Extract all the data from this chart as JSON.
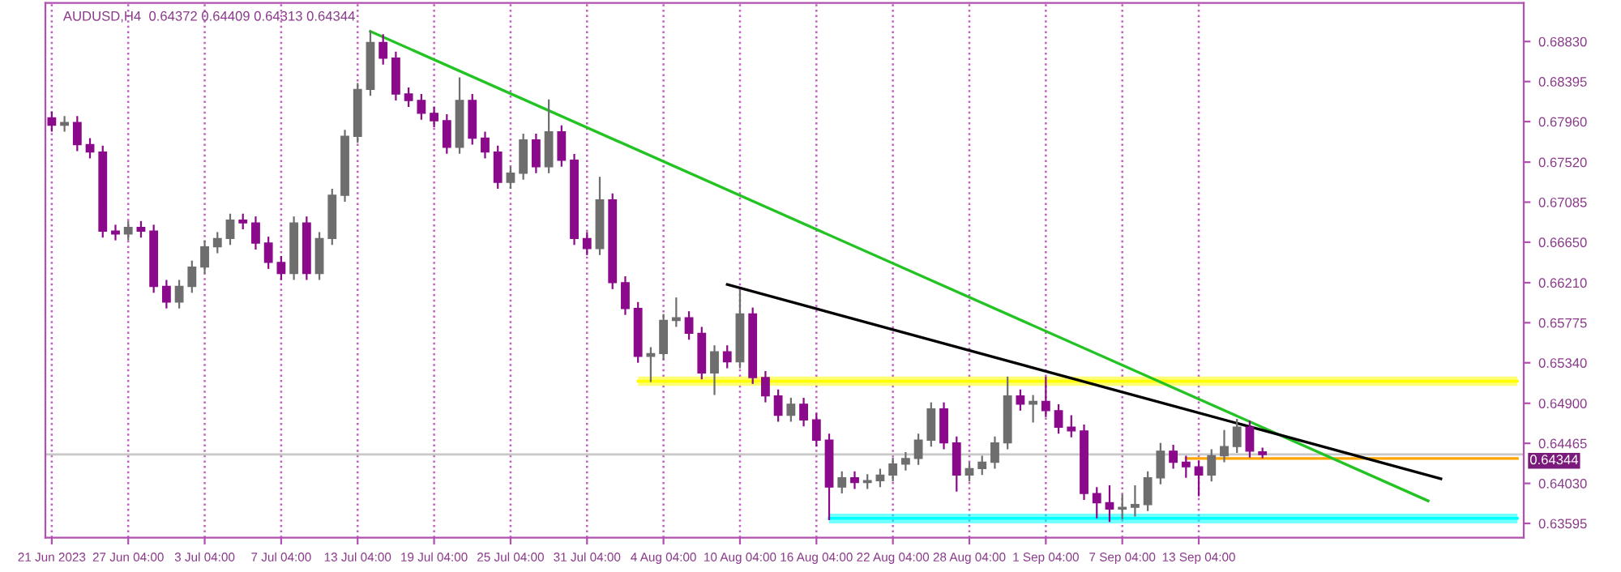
{
  "chart_data": {
    "type": "candlestick",
    "title": "AUDUSD,H4  0.64372 0.64409 0.64313 0.64344",
    "categories": [
      "21 Jun 2023",
      null,
      null,
      null,
      null,
      null,
      "27 Jun 04:00",
      null,
      null,
      null,
      null,
      null,
      "3 Jul 04:00",
      null,
      null,
      null,
      null,
      null,
      "7 Jul 04:00",
      null,
      null,
      null,
      null,
      null,
      "13 Jul 04:00",
      null,
      null,
      null,
      null,
      null,
      "19 Jul 04:00",
      null,
      null,
      null,
      null,
      null,
      "25 Jul 04:00",
      null,
      null,
      null,
      null,
      null,
      "31 Jul 04:00",
      null,
      null,
      null,
      null,
      null,
      "4 Aug 04:00",
      null,
      null,
      null,
      null,
      null,
      "10 Aug 04:00",
      null,
      null,
      null,
      null,
      null,
      "16 Aug 04:00",
      null,
      null,
      null,
      null,
      null,
      "22 Aug 04:00",
      null,
      null,
      null,
      null,
      null,
      "28 Aug 04:00",
      null,
      null,
      null,
      null,
      null,
      "1 Sep 04:00",
      null,
      null,
      null,
      null,
      null,
      "7 Sep 04:00",
      null,
      null,
      null,
      null,
      null,
      "13 Sep 04:00",
      null,
      null,
      null,
      null,
      null,
      null,
      null,
      null,
      null,
      null,
      null,
      null,
      null,
      null,
      null,
      null,
      null,
      null,
      null,
      null,
      null,
      null,
      null,
      null,
      null
    ],
    "ohlc": [
      [
        0.68,
        0.6806,
        0.6786,
        0.6792
      ],
      [
        0.6792,
        0.6801,
        0.6786,
        0.6795
      ],
      [
        0.6795,
        0.6801,
        0.6765,
        0.6771
      ],
      [
        0.6771,
        0.6777,
        0.6757,
        0.6763
      ],
      [
        0.6763,
        0.6769,
        0.6671,
        0.6677
      ],
      [
        0.6677,
        0.6683,
        0.6668,
        0.6674
      ],
      [
        0.6674,
        0.6687,
        0.6668,
        0.6681
      ],
      [
        0.6681,
        0.6687,
        0.6671,
        0.6677
      ],
      [
        0.6677,
        0.6683,
        0.6611,
        0.6617
      ],
      [
        0.6617,
        0.6623,
        0.6594,
        0.66
      ],
      [
        0.66,
        0.6623,
        0.6594,
        0.6617
      ],
      [
        0.6617,
        0.6644,
        0.6611,
        0.6638
      ],
      [
        0.6638,
        0.6666,
        0.6632,
        0.666
      ],
      [
        0.666,
        0.6675,
        0.6654,
        0.6669
      ],
      [
        0.6669,
        0.6695,
        0.6663,
        0.6689
      ],
      [
        0.6689,
        0.6695,
        0.668,
        0.6686
      ],
      [
        0.6686,
        0.6692,
        0.6658,
        0.6664
      ],
      [
        0.6664,
        0.667,
        0.6637,
        0.6643
      ],
      [
        0.6643,
        0.6649,
        0.6625,
        0.6631
      ],
      [
        0.6631,
        0.6692,
        0.6625,
        0.6686
      ],
      [
        0.6686,
        0.6692,
        0.6625,
        0.6631
      ],
      [
        0.6631,
        0.6675,
        0.6625,
        0.6669
      ],
      [
        0.6669,
        0.6722,
        0.6663,
        0.6716
      ],
      [
        0.6716,
        0.6786,
        0.671,
        0.678
      ],
      [
        0.678,
        0.6837,
        0.6774,
        0.6831
      ],
      [
        0.6831,
        0.6894,
        0.6825,
        0.6882
      ],
      [
        0.6882,
        0.689,
        0.6859,
        0.6865
      ],
      [
        0.6865,
        0.6871,
        0.682,
        0.6826
      ],
      [
        0.6826,
        0.6832,
        0.6813,
        0.6819
      ],
      [
        0.6819,
        0.6825,
        0.6799,
        0.6805
      ],
      [
        0.6805,
        0.6811,
        0.6791,
        0.6797
      ],
      [
        0.6797,
        0.6803,
        0.6762,
        0.6768
      ],
      [
        0.6768,
        0.6843,
        0.6762,
        0.6819
      ],
      [
        0.6819,
        0.6825,
        0.6772,
        0.6778
      ],
      [
        0.6778,
        0.6784,
        0.6757,
        0.6763
      ],
      [
        0.6763,
        0.6769,
        0.6724,
        0.673
      ],
      [
        0.673,
        0.6746,
        0.6724,
        0.674
      ],
      [
        0.674,
        0.6782,
        0.6734,
        0.6776
      ],
      [
        0.6776,
        0.6782,
        0.6741,
        0.6747
      ],
      [
        0.6747,
        0.6819,
        0.6741,
        0.6785
      ],
      [
        0.6785,
        0.6791,
        0.6748,
        0.6754
      ],
      [
        0.6754,
        0.676,
        0.6663,
        0.6669
      ],
      [
        0.6669,
        0.6675,
        0.6652,
        0.6658
      ],
      [
        0.6658,
        0.6735,
        0.6652,
        0.6711
      ],
      [
        0.6711,
        0.6717,
        0.6615,
        0.6621
      ],
      [
        0.6621,
        0.6627,
        0.6587,
        0.6593
      ],
      [
        0.6593,
        0.6599,
        0.6535,
        0.6541
      ],
      [
        0.6541,
        0.655,
        0.6514,
        0.6544
      ],
      [
        0.6544,
        0.6586,
        0.6538,
        0.658
      ],
      [
        0.658,
        0.6604,
        0.6574,
        0.6583
      ],
      [
        0.6583,
        0.6589,
        0.656,
        0.6566
      ],
      [
        0.6566,
        0.6572,
        0.6517,
        0.6523
      ],
      [
        0.6523,
        0.6552,
        0.65,
        0.6546
      ],
      [
        0.6546,
        0.6552,
        0.6529,
        0.6535
      ],
      [
        0.6535,
        0.6612,
        0.6529,
        0.6587
      ],
      [
        0.6587,
        0.6593,
        0.6512,
        0.6518
      ],
      [
        0.6518,
        0.6524,
        0.6492,
        0.6498
      ],
      [
        0.6498,
        0.6504,
        0.6471,
        0.6477
      ],
      [
        0.6477,
        0.6495,
        0.6471,
        0.6489
      ],
      [
        0.6489,
        0.6495,
        0.6466,
        0.6472
      ],
      [
        0.6472,
        0.6478,
        0.6444,
        0.645
      ],
      [
        0.645,
        0.6456,
        0.6364,
        0.6399
      ],
      [
        0.6399,
        0.6415,
        0.6393,
        0.6409
      ],
      [
        0.6409,
        0.6415,
        0.6398,
        0.6404
      ],
      [
        0.6404,
        0.6412,
        0.6398,
        0.6406
      ],
      [
        0.6406,
        0.6418,
        0.64,
        0.6412
      ],
      [
        0.6412,
        0.643,
        0.6406,
        0.6424
      ],
      [
        0.6424,
        0.6436,
        0.6418,
        0.643
      ],
      [
        0.643,
        0.6456,
        0.6424,
        0.645
      ],
      [
        0.645,
        0.649,
        0.6444,
        0.6484
      ],
      [
        0.6484,
        0.649,
        0.6441,
        0.6447
      ],
      [
        0.6447,
        0.6453,
        0.6395,
        0.6412
      ],
      [
        0.6412,
        0.6425,
        0.6406,
        0.6419
      ],
      [
        0.6419,
        0.6432,
        0.6413,
        0.6426
      ],
      [
        0.6426,
        0.6453,
        0.642,
        0.6447
      ],
      [
        0.6447,
        0.6518,
        0.6441,
        0.6498
      ],
      [
        0.6498,
        0.6504,
        0.6483,
        0.6489
      ],
      [
        0.6489,
        0.6498,
        0.647,
        0.6492
      ],
      [
        0.6492,
        0.6518,
        0.6476,
        0.6482
      ],
      [
        0.6482,
        0.6488,
        0.6458,
        0.6464
      ],
      [
        0.6464,
        0.6476,
        0.6454,
        0.646
      ],
      [
        0.646,
        0.6466,
        0.6386,
        0.6392
      ],
      [
        0.6392,
        0.6398,
        0.6366,
        0.6382
      ],
      [
        0.6382,
        0.64,
        0.6362,
        0.6375
      ],
      [
        0.6375,
        0.639,
        0.6365,
        0.6377
      ],
      [
        0.6377,
        0.64,
        0.6368,
        0.638
      ],
      [
        0.638,
        0.6415,
        0.6374,
        0.6409
      ],
      [
        0.6409,
        0.6446,
        0.6403,
        0.6438
      ],
      [
        0.6438,
        0.6444,
        0.642,
        0.6426
      ],
      [
        0.6426,
        0.6432,
        0.641,
        0.6421
      ],
      [
        0.6421,
        0.6427,
        0.639,
        0.6412
      ],
      [
        0.6412,
        0.6439,
        0.6406,
        0.6433
      ],
      [
        0.6433,
        0.646,
        0.6427,
        0.6443
      ],
      [
        0.6443,
        0.6472,
        0.6437,
        0.6464
      ],
      [
        0.6464,
        0.647,
        0.6432,
        0.6438
      ],
      [
        0.64372,
        0.64409,
        0.64313,
        0.64344
      ],
      null,
      null,
      null,
      null,
      null,
      null,
      null,
      null,
      null,
      null,
      null,
      null,
      null,
      null,
      null,
      null,
      null,
      null,
      null,
      null
    ],
    "colors": [
      "#8b0a8b",
      "#6e6e6e",
      "#8b0a8b",
      "#8b0a8b",
      "#8b0a8b",
      "#8b0a8b",
      "#6e6e6e",
      "#8b0a8b",
      "#8b0a8b",
      "#8b0a8b",
      "#6e6e6e",
      "#6e6e6e",
      "#6e6e6e",
      "#6e6e6e",
      "#6e6e6e",
      "#8b0a8b",
      "#8b0a8b",
      "#8b0a8b",
      "#8b0a8b",
      "#6e6e6e",
      "#8b0a8b",
      "#6e6e6e",
      "#6e6e6e",
      "#6e6e6e",
      "#6e6e6e",
      "#6e6e6e",
      "#8b0a8b",
      "#8b0a8b",
      "#8b0a8b",
      "#8b0a8b",
      "#8b0a8b",
      "#8b0a8b",
      "#6e6e6e",
      "#8b0a8b",
      "#8b0a8b",
      "#8b0a8b",
      "#6e6e6e",
      "#6e6e6e",
      "#8b0a8b",
      "#6e6e6e",
      "#8b0a8b",
      "#8b0a8b",
      "#8b0a8b",
      "#6e6e6e",
      "#8b0a8b",
      "#8b0a8b",
      "#8b0a8b",
      "#6e6e6e",
      "#6e6e6e",
      "#6e6e6e",
      "#8b0a8b",
      "#8b0a8b",
      "#6e6e6e",
      "#8b0a8b",
      "#6e6e6e",
      "#8b0a8b",
      "#8b0a8b",
      "#8b0a8b",
      "#6e6e6e",
      "#8b0a8b",
      "#8b0a8b",
      "#8b0a8b",
      "#6e6e6e",
      "#8b0a8b",
      "#6e6e6e",
      "#6e6e6e",
      "#6e6e6e",
      "#6e6e6e",
      "#6e6e6e",
      "#6e6e6e",
      "#8b0a8b",
      "#8b0a8b",
      "#6e6e6e",
      "#6e6e6e",
      "#6e6e6e",
      "#6e6e6e",
      "#8b0a8b",
      "#6e6e6e",
      "#8b0a8b",
      "#8b0a8b",
      "#8b0a8b",
      "#8b0a8b",
      "#8b0a8b",
      "#8b0a8b",
      "#6e6e6e",
      "#6e6e6e",
      "#6e6e6e",
      "#6e6e6e",
      "#8b0a8b",
      "#8b0a8b",
      "#8b0a8b",
      "#6e6e6e",
      "#6e6e6e",
      "#6e6e6e",
      "#8b0a8b",
      "#8b0a8b",
      null,
      null,
      null,
      null,
      null,
      null,
      null,
      null,
      null,
      null,
      null,
      null,
      null,
      null,
      null,
      null,
      null,
      null,
      null,
      null
    ],
    "series": [
      {
        "type": "line",
        "color": "#ffff00",
        "values": [
          null,
          null,
          null,
          null,
          null,
          null,
          null,
          null,
          null,
          null,
          null,
          null,
          null,
          null,
          null,
          null,
          null,
          null,
          null,
          null,
          null,
          null,
          null,
          null,
          null,
          null,
          null,
          null,
          null,
          null,
          null,
          null,
          null,
          null,
          null,
          null,
          null,
          null,
          null,
          null,
          null,
          null,
          null,
          null,
          null,
          null,
          0.6514,
          null,
          null,
          null,
          null,
          null,
          null,
          null,
          null,
          null,
          null,
          null,
          null,
          null,
          null,
          null,
          null,
          null,
          null,
          null,
          null,
          null,
          null,
          null,
          null,
          null,
          null,
          null,
          null,
          null,
          null,
          null,
          null,
          null,
          null,
          null,
          null,
          null,
          null,
          null,
          null,
          null,
          null,
          null,
          null,
          null,
          null,
          null,
          null,
          null,
          null,
          null,
          null,
          null,
          null,
          null,
          null,
          null,
          null,
          null,
          null,
          null,
          null,
          null,
          null,
          null,
          null,
          null,
          null,
          0.6514
        ],
        "lower": [
          null,
          null,
          null,
          null,
          null,
          null,
          null,
          null,
          null,
          null,
          null,
          null,
          null,
          null,
          null,
          null,
          null,
          null,
          null,
          null,
          null,
          null,
          null,
          null,
          null,
          null,
          null,
          null,
          null,
          null,
          null,
          null,
          null,
          null,
          null,
          null,
          null,
          null,
          null,
          null,
          null,
          null,
          null,
          null,
          null,
          null,
          0.6509,
          null,
          null,
          null,
          null,
          null,
          null,
          null,
          null,
          null,
          null,
          null,
          null,
          null,
          null,
          null,
          null,
          null,
          null,
          null,
          null,
          null,
          null,
          null,
          null,
          null,
          null,
          null,
          null,
          null,
          null,
          null,
          null,
          null,
          null,
          null,
          null,
          null,
          null,
          null,
          null,
          null,
          null,
          null,
          null,
          null,
          null,
          null,
          null,
          null,
          null,
          null,
          null,
          null,
          null,
          null,
          null,
          null,
          null,
          null,
          null,
          null,
          null,
          null,
          null,
          null,
          null,
          null,
          null,
          0.6509
        ],
        "upper": [
          null,
          null,
          null,
          null,
          null,
          null,
          null,
          null,
          null,
          null,
          null,
          null,
          null,
          null,
          null,
          null,
          null,
          null,
          null,
          null,
          null,
          null,
          null,
          null,
          null,
          null,
          null,
          null,
          null,
          null,
          null,
          null,
          null,
          null,
          null,
          null,
          null,
          null,
          null,
          null,
          null,
          null,
          null,
          null,
          null,
          null,
          0.6519,
          null,
          null,
          null,
          null,
          null,
          null,
          null,
          null,
          null,
          null,
          null,
          null,
          null,
          null,
          null,
          null,
          null,
          null,
          null,
          null,
          null,
          null,
          null,
          null,
          null,
          null,
          null,
          null,
          null,
          null,
          null,
          null,
          null,
          null,
          null,
          null,
          null,
          null,
          null,
          null,
          null,
          null,
          null,
          null,
          null,
          null,
          null,
          null,
          null,
          null,
          null,
          null,
          null,
          null,
          null,
          null,
          null,
          null,
          null,
          null,
          null,
          null,
          null,
          null,
          null,
          null,
          null,
          null,
          0.6519
        ]
      },
      {
        "type": "line",
        "color": "#00ffff",
        "values": [
          null,
          null,
          null,
          null,
          null,
          null,
          null,
          null,
          null,
          null,
          null,
          null,
          null,
          null,
          null,
          null,
          null,
          null,
          null,
          null,
          null,
          null,
          null,
          null,
          null,
          null,
          null,
          null,
          null,
          null,
          null,
          null,
          null,
          null,
          null,
          null,
          null,
          null,
          null,
          null,
          null,
          null,
          null,
          null,
          null,
          null,
          null,
          null,
          null,
          null,
          null,
          null,
          null,
          null,
          null,
          null,
          null,
          null,
          null,
          null,
          null,
          0.6365,
          null,
          null,
          null,
          null,
          null,
          null,
          null,
          null,
          null,
          null,
          null,
          null,
          null,
          null,
          null,
          null,
          null,
          null,
          null,
          null,
          null,
          null,
          null,
          null,
          null,
          null,
          null,
          null,
          null,
          null,
          null,
          null,
          null,
          null,
          null,
          null,
          null,
          null,
          null,
          null,
          null,
          null,
          null,
          null,
          null,
          null,
          null,
          null,
          null,
          null,
          null,
          null,
          null,
          0.6365
        ],
        "lower": [
          null,
          null,
          null,
          null,
          null,
          null,
          null,
          null,
          null,
          null,
          null,
          null,
          null,
          null,
          null,
          null,
          null,
          null,
          null,
          null,
          null,
          null,
          null,
          null,
          null,
          null,
          null,
          null,
          null,
          null,
          null,
          null,
          null,
          null,
          null,
          null,
          null,
          null,
          null,
          null,
          null,
          null,
          null,
          null,
          null,
          null,
          null,
          null,
          null,
          null,
          null,
          null,
          null,
          null,
          null,
          null,
          null,
          null,
          null,
          null,
          null,
          0.63595,
          null,
          null,
          null,
          null,
          null,
          null,
          null,
          null,
          null,
          null,
          null,
          null,
          null,
          null,
          null,
          null,
          null,
          null,
          null,
          null,
          null,
          null,
          null,
          null,
          null,
          null,
          null,
          null,
          null,
          null,
          null,
          null,
          null,
          null,
          null,
          null,
          null,
          null,
          null,
          null,
          null,
          null,
          null,
          null,
          null,
          null,
          null,
          null,
          null,
          null,
          null,
          null,
          null,
          0.63595
        ],
        "upper": [
          null,
          null,
          null,
          null,
          null,
          null,
          null,
          null,
          null,
          null,
          null,
          null,
          null,
          null,
          null,
          null,
          null,
          null,
          null,
          null,
          null,
          null,
          null,
          null,
          null,
          null,
          null,
          null,
          null,
          null,
          null,
          null,
          null,
          null,
          null,
          null,
          null,
          null,
          null,
          null,
          null,
          null,
          null,
          null,
          null,
          null,
          null,
          null,
          null,
          null,
          null,
          null,
          null,
          null,
          null,
          null,
          null,
          null,
          null,
          null,
          null,
          0.637,
          null,
          null,
          null,
          null,
          null,
          null,
          null,
          null,
          null,
          null,
          null,
          null,
          null,
          null,
          null,
          null,
          null,
          null,
          null,
          null,
          null,
          null,
          null,
          null,
          null,
          null,
          null,
          null,
          null,
          null,
          null,
          null,
          null,
          null,
          null,
          null,
          null,
          null,
          null,
          null,
          null,
          null,
          null,
          null,
          null,
          null,
          null,
          null,
          null,
          null,
          null,
          null,
          null,
          0.637
        ]
      },
      {
        "type": "line",
        "color": "#ffa500",
        "values": [
          null,
          null,
          null,
          null,
          null,
          null,
          null,
          null,
          null,
          null,
          null,
          null,
          null,
          null,
          null,
          null,
          null,
          null,
          null,
          null,
          null,
          null,
          null,
          null,
          null,
          null,
          null,
          null,
          null,
          null,
          null,
          null,
          null,
          null,
          null,
          null,
          null,
          null,
          null,
          null,
          null,
          null,
          null,
          null,
          null,
          null,
          null,
          null,
          null,
          null,
          null,
          null,
          null,
          null,
          null,
          null,
          null,
          null,
          null,
          null,
          null,
          null,
          null,
          null,
          null,
          null,
          null,
          null,
          null,
          null,
          null,
          null,
          null,
          null,
          null,
          null,
          null,
          null,
          null,
          null,
          null,
          null,
          null,
          null,
          null,
          null,
          null,
          null,
          null,
          0.643,
          null,
          null,
          null,
          null,
          null,
          null,
          null,
          null,
          null,
          null,
          null,
          null,
          null,
          null,
          null,
          null,
          null,
          null,
          null,
          null,
          null,
          null,
          null,
          null,
          null,
          0.643
        ]
      },
      {
        "type": "line",
        "color": "#22c322",
        "values": [
          null,
          null,
          null,
          null,
          null,
          null,
          null,
          null,
          null,
          null,
          null,
          null,
          null,
          null,
          null,
          null,
          null,
          null,
          null,
          null,
          null,
          null,
          null,
          null,
          null,
          0.6894,
          null,
          null,
          null,
          null,
          null,
          null,
          null,
          null,
          null,
          null,
          null,
          null,
          null,
          null,
          null,
          null,
          null,
          null,
          null,
          null,
          null,
          null,
          null,
          null,
          null,
          null,
          null,
          null,
          null,
          null,
          null,
          null,
          null,
          null,
          null,
          null,
          null,
          null,
          null,
          null,
          null,
          null,
          null,
          null,
          null,
          null,
          null,
          null,
          null,
          null,
          null,
          null,
          null,
          null,
          null,
          null,
          null,
          null,
          null,
          null,
          null,
          null,
          null,
          null,
          null,
          null,
          null,
          null,
          null,
          null,
          null,
          null,
          null,
          null,
          null,
          null,
          null,
          null,
          null,
          null,
          null,
          null,
          0.6384,
          null,
          null,
          null,
          null,
          null,
          null,
          null
        ]
      },
      {
        "type": "line",
        "color": "#000000",
        "values": [
          null,
          null,
          null,
          null,
          null,
          null,
          null,
          null,
          null,
          null,
          null,
          null,
          null,
          null,
          null,
          null,
          null,
          null,
          null,
          null,
          null,
          null,
          null,
          null,
          null,
          null,
          null,
          null,
          null,
          null,
          null,
          null,
          null,
          null,
          null,
          null,
          null,
          null,
          null,
          null,
          null,
          null,
          null,
          null,
          null,
          null,
          null,
          null,
          null,
          null,
          null,
          null,
          null,
          0.6619,
          null,
          null,
          null,
          null,
          null,
          null,
          null,
          null,
          null,
          null,
          null,
          null,
          null,
          null,
          null,
          null,
          null,
          null,
          null,
          null,
          null,
          null,
          null,
          null,
          null,
          null,
          null,
          null,
          null,
          null,
          null,
          null,
          null,
          null,
          null,
          null,
          null,
          null,
          null,
          null,
          null,
          null,
          null,
          null,
          null,
          null,
          null,
          null,
          null,
          null,
          null,
          null,
          null,
          null,
          null,
          0.6408,
          null,
          null,
          null,
          null,
          null,
          null
        ]
      }
    ],
    "ylim": [
      0.6344,
      0.6925
    ],
    "yticks": [
      {
        "value": 0.6883,
        "label": "0.68830"
      },
      {
        "value": 0.68395,
        "label": "0.68395"
      },
      {
        "value": 0.6796,
        "label": "0.67960"
      },
      {
        "value": 0.6752,
        "label": "0.67520"
      },
      {
        "value": 0.67085,
        "label": "0.67085"
      },
      {
        "value": 0.6665,
        "label": "0.66650"
      },
      {
        "value": 0.6621,
        "label": "0.66210"
      },
      {
        "value": 0.65775,
        "label": "0.65775"
      },
      {
        "value": 0.6534,
        "label": "0.65340"
      },
      {
        "value": 0.649,
        "label": "0.64900"
      },
      {
        "value": 0.64465,
        "label": "0.64465"
      },
      {
        "value": 0.6403,
        "label": "0.64030"
      },
      {
        "value": 0.63595,
        "label": "0.63595"
      }
    ],
    "ref_lines": [
      {
        "axis": "y",
        "value": 0.64344,
        "label": "0.64344",
        "color": "#c8c8c8",
        "line_style": "solid"
      }
    ],
    "grid": "x"
  }
}
